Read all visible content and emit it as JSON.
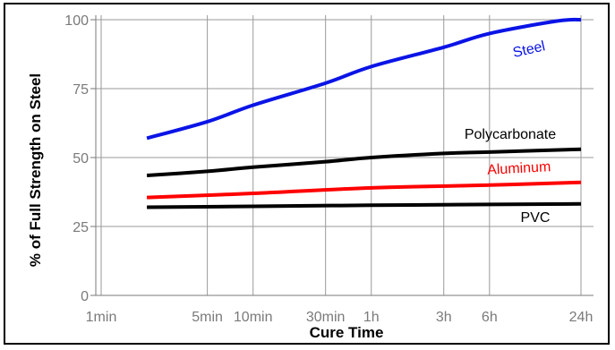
{
  "chart_data": {
    "type": "line",
    "title": "",
    "xlabel": "Cure Time",
    "ylabel": "% of Full Strength on Steel",
    "x_scale": "log",
    "x_ticks": [
      {
        "label": "1min",
        "minutes": 1
      },
      {
        "label": "5min",
        "minutes": 5
      },
      {
        "label": "10min",
        "minutes": 10
      },
      {
        "label": "30min",
        "minutes": 30
      },
      {
        "label": "1h",
        "minutes": 60
      },
      {
        "label": "3h",
        "minutes": 180
      },
      {
        "label": "6h",
        "minutes": 360
      },
      {
        "label": "24h",
        "minutes": 1440
      }
    ],
    "y_ticks": [
      0,
      25,
      50,
      75,
      100
    ],
    "ylim": [
      0,
      100
    ],
    "xlim_minutes": [
      1,
      1440
    ],
    "grid": true,
    "legend": "none",
    "series": [
      {
        "name": "Steel",
        "color": "#0a14e6",
        "x_minutes": [
          2,
          5,
          10,
          30,
          60,
          180,
          360,
          1000,
          1440
        ],
        "values": [
          57,
          63,
          69,
          77,
          83,
          90,
          95,
          99.5,
          100
        ]
      },
      {
        "name": "Polycarbonate",
        "color": "#000000",
        "x_minutes": [
          2,
          5,
          10,
          30,
          60,
          180,
          360,
          1440
        ],
        "values": [
          43.5,
          45,
          46.5,
          48.5,
          50,
          51.5,
          52,
          53
        ]
      },
      {
        "name": "Aluminum",
        "color": "#ff0000",
        "x_minutes": [
          2,
          10,
          60,
          360,
          1440
        ],
        "values": [
          35.5,
          37,
          39,
          40,
          41
        ]
      },
      {
        "name": "PVC",
        "color": "#000000",
        "x_minutes": [
          2,
          10,
          60,
          360,
          1440
        ],
        "values": [
          32,
          32.3,
          32.7,
          33,
          33.2
        ]
      }
    ]
  }
}
